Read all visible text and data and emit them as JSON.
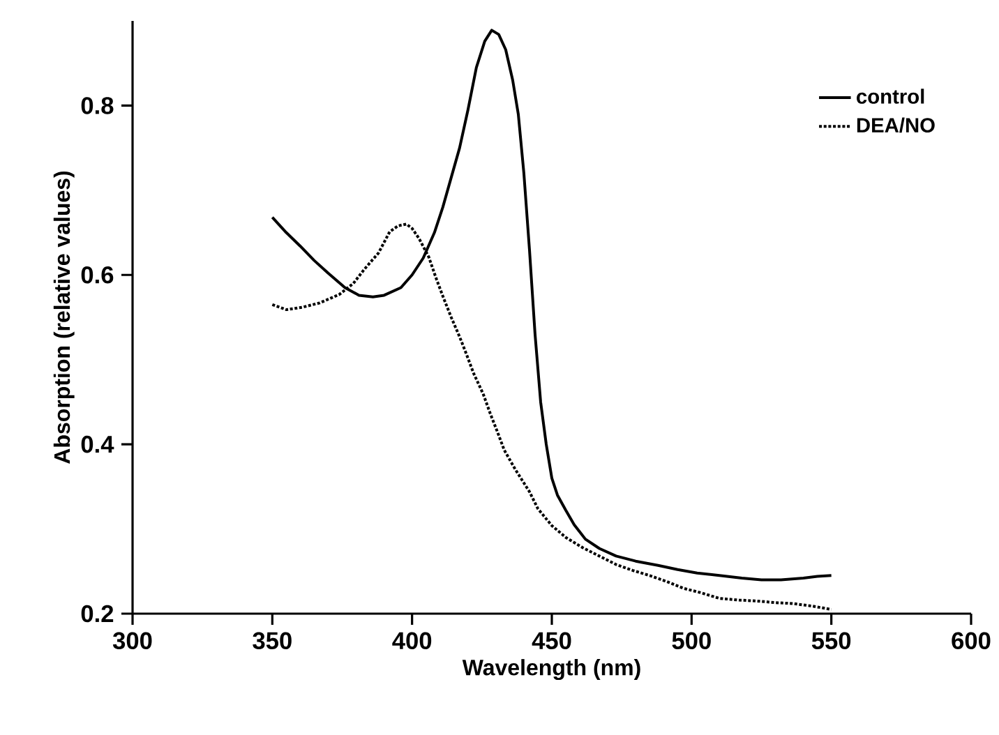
{
  "chart_data": {
    "type": "line",
    "xlabel": "Wavelength (nm)",
    "ylabel": "Absorption  (relative  values)",
    "xlim": [
      300,
      600
    ],
    "xticks": [
      300,
      350,
      400,
      450,
      500,
      550,
      600
    ],
    "ylim": [
      0.2,
      0.9
    ],
    "yticks": [
      0.2,
      0.4,
      0.6,
      0.8
    ],
    "legend": "top right",
    "grid": false,
    "marker": "none",
    "series": [
      {
        "name": "control",
        "color": "#000000",
        "line_style": "solid",
        "x": [
          350,
          355,
          360,
          365,
          370,
          376,
          381,
          386,
          390,
          396,
          400,
          404,
          408,
          411,
          414,
          417,
          420,
          423,
          426,
          428.5,
          431,
          433.5,
          436,
          438,
          440,
          442,
          444,
          446,
          448,
          450,
          452,
          455,
          458,
          462,
          467,
          473,
          480,
          488,
          495,
          502,
          510,
          518,
          525,
          532,
          540,
          545,
          550
        ],
        "values": [
          0.668,
          0.65,
          0.634,
          0.617,
          0.602,
          0.585,
          0.576,
          0.574,
          0.576,
          0.585,
          0.6,
          0.62,
          0.65,
          0.68,
          0.715,
          0.75,
          0.795,
          0.845,
          0.876,
          0.889,
          0.884,
          0.866,
          0.83,
          0.79,
          0.72,
          0.63,
          0.53,
          0.45,
          0.4,
          0.36,
          0.34,
          0.322,
          0.305,
          0.288,
          0.277,
          0.268,
          0.262,
          0.257,
          0.252,
          0.248,
          0.245,
          0.242,
          0.24,
          0.24,
          0.242,
          0.244,
          0.245
        ]
      },
      {
        "name": "DEA/NO",
        "color": "#000000",
        "line_style": "dotted",
        "x": [
          350,
          355,
          361,
          367,
          374,
          379,
          383,
          388,
          392,
          395,
          398,
          400,
          402.5,
          406,
          408.5,
          411,
          414,
          417,
          419.5,
          422,
          425.5,
          428,
          430.5,
          433,
          437,
          442,
          445,
          450,
          455,
          461,
          467,
          473,
          479,
          485,
          491,
          497,
          503,
          510,
          517,
          523,
          530,
          536,
          543,
          550
        ],
        "values": [
          0.565,
          0.559,
          0.562,
          0.567,
          0.577,
          0.59,
          0.607,
          0.626,
          0.651,
          0.658,
          0.66,
          0.655,
          0.643,
          0.621,
          0.597,
          0.575,
          0.55,
          0.527,
          0.506,
          0.484,
          0.459,
          0.436,
          0.415,
          0.393,
          0.37,
          0.344,
          0.324,
          0.304,
          0.29,
          0.278,
          0.268,
          0.258,
          0.251,
          0.245,
          0.238,
          0.23,
          0.225,
          0.218,
          0.216,
          0.215,
          0.213,
          0.212,
          0.209,
          0.205
        ]
      }
    ]
  }
}
